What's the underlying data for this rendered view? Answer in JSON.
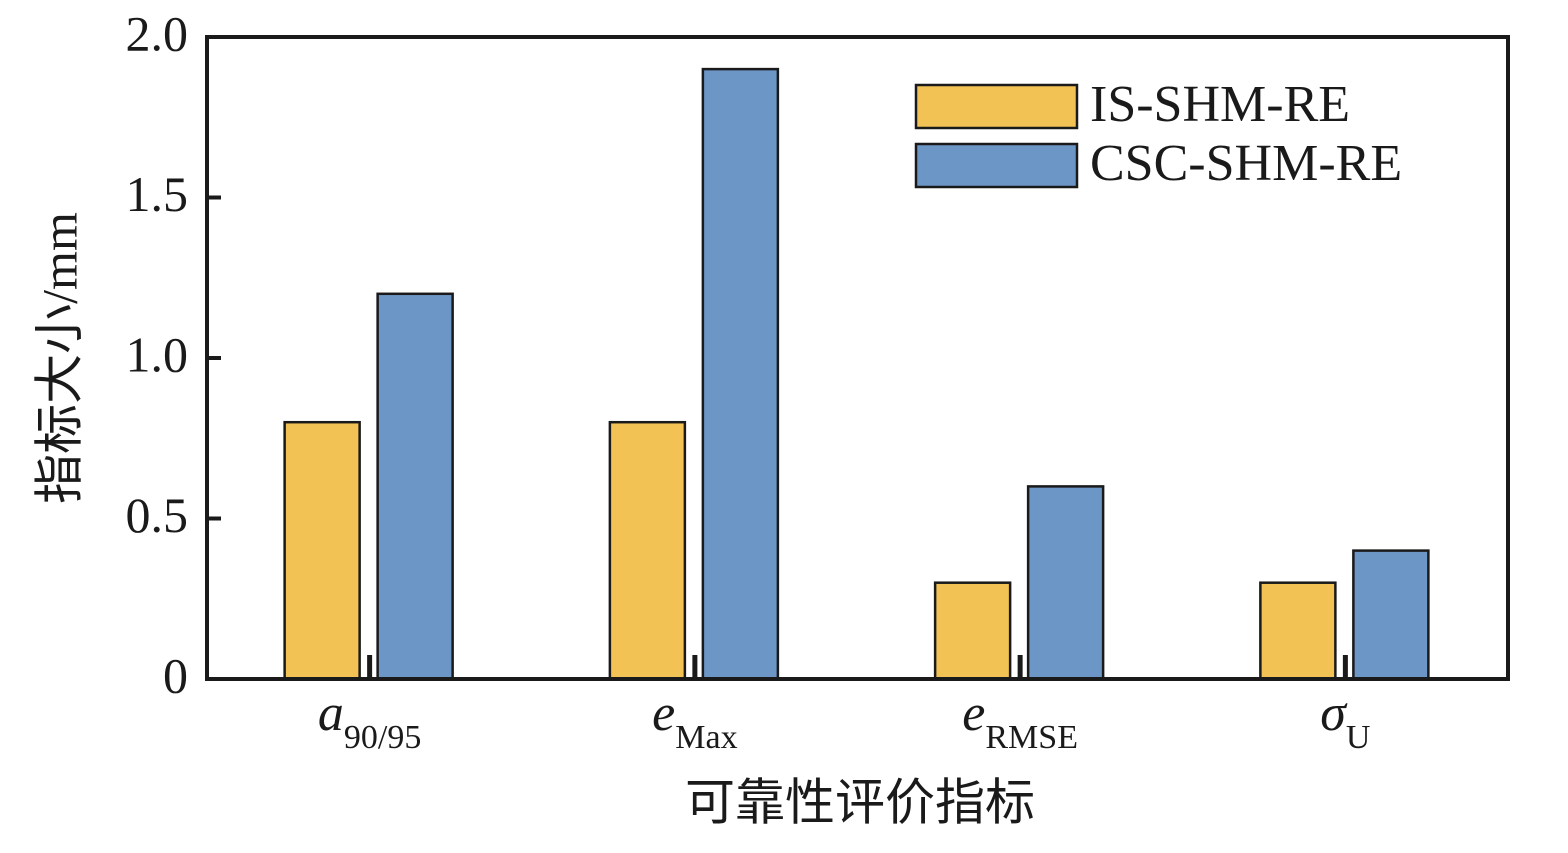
{
  "chart_data": {
    "type": "bar",
    "categories": [
      "a",
      "e",
      "e",
      "σ"
    ],
    "category_subscripts": [
      "90/95",
      "Max",
      "RMSE",
      "U"
    ],
    "x_label": "可靠性评价指标",
    "y_label": "指标大小/mm",
    "series": [
      {
        "name": "IS-SHM-RE",
        "color": "#F2C354",
        "values": [
          0.8,
          0.8,
          0.3,
          0.3
        ]
      },
      {
        "name": "CSC-SHM-RE",
        "color": "#6C96C6",
        "values": [
          1.2,
          1.9,
          0.6,
          0.4
        ]
      }
    ],
    "ylim": [
      0,
      2
    ],
    "yticks": [
      0,
      0.5,
      {
        "value": 1,
        "label": "1.0"
      },
      1.5,
      {
        "value": 2,
        "label": "2.0"
      }
    ],
    "legend": "upper right"
  }
}
